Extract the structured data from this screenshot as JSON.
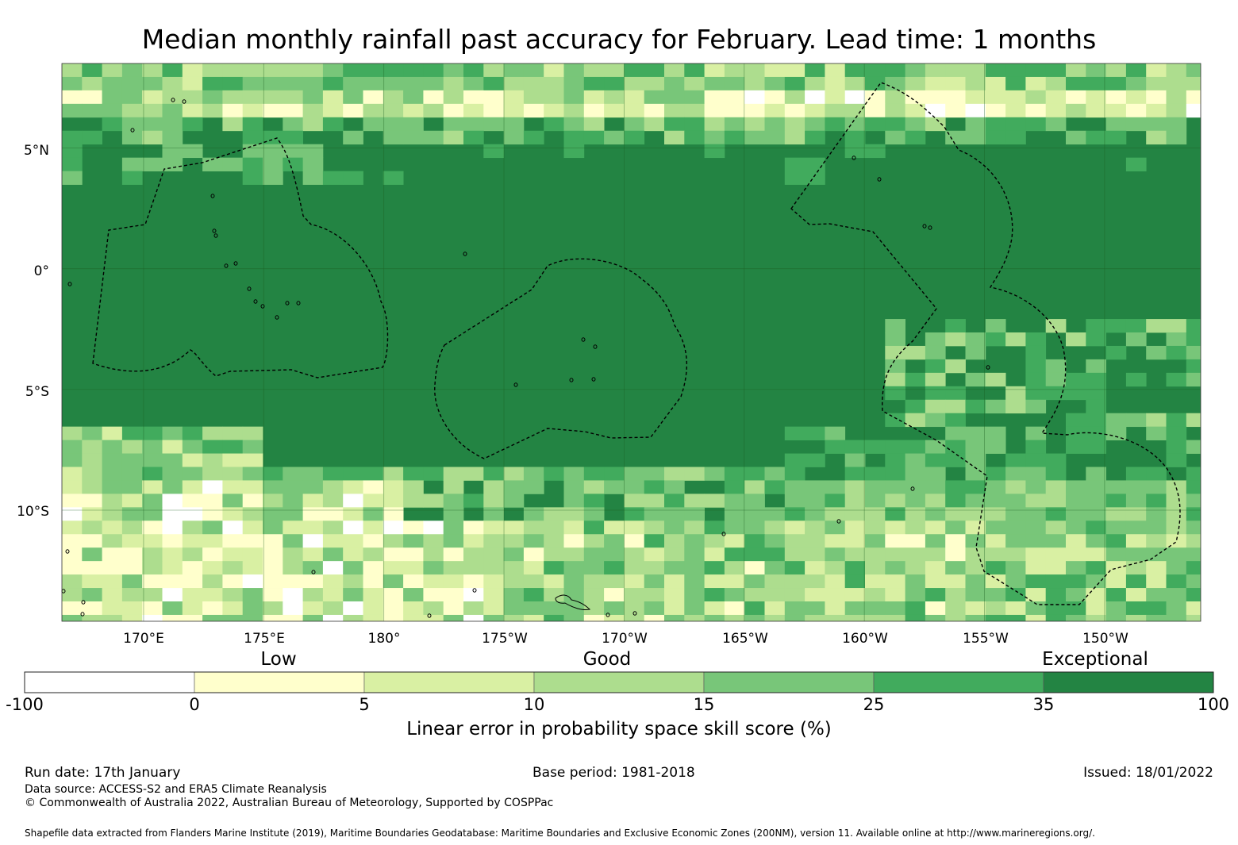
{
  "title": "Median monthly rainfall past accuracy for February. Lead time: 1 months",
  "map": {
    "lat_labels": [
      "5°N",
      "0°",
      "5°S",
      "10°S"
    ],
    "lon_labels": [
      "170°E",
      "175°E",
      "180°",
      "175°W",
      "170°W",
      "165°W",
      "160°W",
      "155°W",
      "150°W"
    ],
    "extent": {
      "lon_west": 166.6,
      "lon_east": 214.0,
      "lat_north": 8.5,
      "lat_south": -14.6
    },
    "cell_size_deg": 0.833,
    "colors": {
      "below_0": "#ffffff",
      "0_5": "#ffffcc",
      "5_10": "#d9f0a3",
      "10_15": "#addd8e",
      "15_25": "#78c679",
      "25_35": "#41ab5d",
      "35_100": "#238443"
    },
    "gridline_color": "#1b5e20",
    "boundary_style": "dashed black (EEZ boundaries)",
    "coastline_color": "#000000"
  },
  "legend": {
    "categories": [
      "Low",
      "Good",
      "Exceptional"
    ],
    "bins": [
      {
        "from": -100,
        "to": 0,
        "color": "#ffffff"
      },
      {
        "from": 0,
        "to": 5,
        "color": "#ffffcc"
      },
      {
        "from": 5,
        "to": 10,
        "color": "#d9f0a3"
      },
      {
        "from": 10,
        "to": 15,
        "color": "#addd8e"
      },
      {
        "from": 15,
        "to": 25,
        "color": "#78c679"
      },
      {
        "from": 25,
        "to": 35,
        "color": "#41ab5d"
      },
      {
        "from": 35,
        "to": 100,
        "color": "#238443"
      }
    ],
    "ticks": [
      "-100",
      "0",
      "5",
      "10",
      "15",
      "25",
      "35",
      "100"
    ],
    "title": "Linear error in probability space skill score (%)"
  },
  "footer": {
    "run_date": "Run date: 17th January",
    "base_period": "Base period: 1981-2018",
    "issued": "Issued: 18/01/2022",
    "data_source": "Data source: ACCESS-S2 and ERA5 Climate Reanalysis",
    "copyright": "© Commonwealth of Australia 2022, Australian Bureau of Meteorology, Supported by COSPPac",
    "shapefile": "Shapefile data extracted from Flanders Marine Institute (2019), Maritime Boundaries Geodatabase: Maritime Boundaries and Exclusive Economic Zones (200NM), version 11. Available online at http://www.marineregions.org/."
  }
}
